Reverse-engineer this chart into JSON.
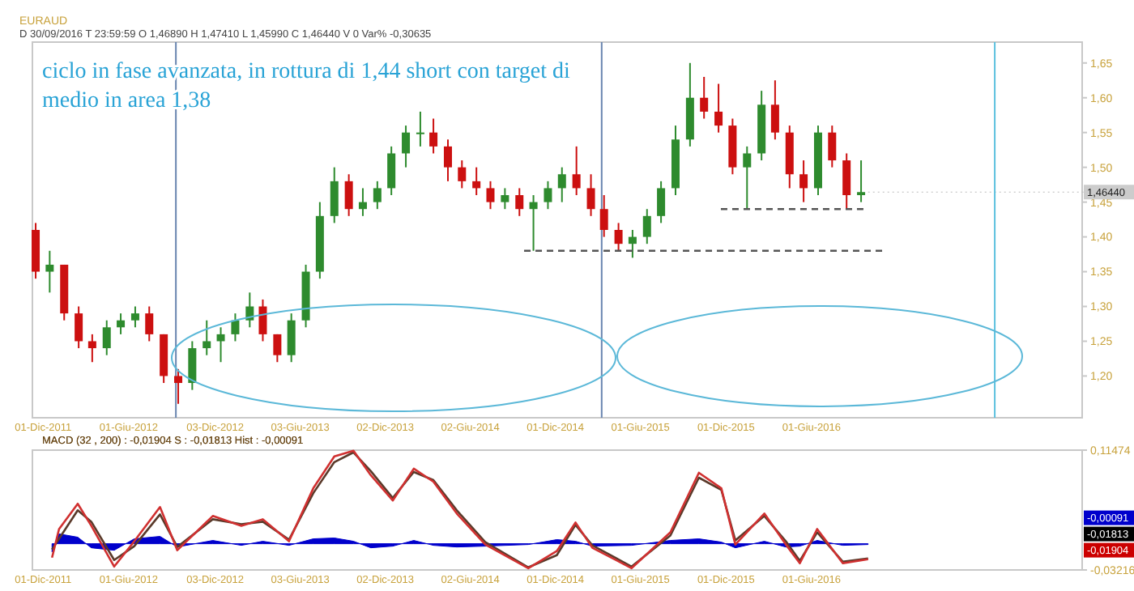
{
  "chart_data": [
    {
      "type": "candlestick",
      "title": "ciclo in fase avanzata, in rottura di 1,44 short con target di medio in area 1,38",
      "annotations": [
        "EURAUD",
        "D 30/09/2016  T 23:59:59  O 1,46890  H 1,47410  L 1,45990  C 1,46440  V 0  Var% -0,30635",
        {
          "text": "1,46440",
          "x": "2016-09-30",
          "y": 1.4644
        }
      ],
      "xlim": [
        "2011-11-08",
        "2018-01-01"
      ],
      "xticks": [
        {
          "value": "2011-12-01",
          "label": "01-Dic-2011"
        },
        {
          "value": "2012-06-01",
          "label": "01-Giu-2012"
        },
        {
          "value": "2012-12-03",
          "label": "03-Dic-2012"
        },
        {
          "value": "2013-06-03",
          "label": "03-Giu-2013"
        },
        {
          "value": "2013-12-02",
          "label": "02-Dic-2013"
        },
        {
          "value": "2014-06-02",
          "label": "02-Giu-2014"
        },
        {
          "value": "2014-12-01",
          "label": "01-Dic-2014"
        },
        {
          "value": "2015-06-01",
          "label": "01-Giu-2015"
        },
        {
          "value": "2015-12-01",
          "label": "01-Dic-2015"
        },
        {
          "value": "2016-06-01",
          "label": "01-Giu-2016"
        }
      ],
      "ylim": [
        1.14,
        1.68
      ],
      "yticks": [
        {
          "value": 1.2,
          "label": "1,20"
        },
        {
          "value": 1.25,
          "label": "1,25"
        },
        {
          "value": 1.3,
          "label": "1,30"
        },
        {
          "value": 1.35,
          "label": "1,35"
        },
        {
          "value": 1.4,
          "label": "1,40"
        },
        {
          "value": 1.45,
          "label": "1,45"
        },
        {
          "value": 1.5,
          "label": "1,50"
        },
        {
          "value": 1.55,
          "label": "1,55"
        },
        {
          "value": 1.6,
          "label": "1,60"
        },
        {
          "value": 1.65,
          "label": "1,65"
        }
      ],
      "x": [
        "2011-11-15",
        "2011-12-15",
        "2012-01-15",
        "2012-02-15",
        "2012-03-15",
        "2012-04-15",
        "2012-05-15",
        "2012-06-15",
        "2012-07-15",
        "2012-08-15",
        "2012-09-15",
        "2012-10-15",
        "2012-11-15",
        "2012-12-15",
        "2013-01-15",
        "2013-02-15",
        "2013-03-15",
        "2013-04-15",
        "2013-05-15",
        "2013-06-15",
        "2013-07-15",
        "2013-08-15",
        "2013-09-15",
        "2013-10-15",
        "2013-11-15",
        "2013-12-15",
        "2014-01-15",
        "2014-02-15",
        "2014-03-15",
        "2014-04-15",
        "2014-05-15",
        "2014-06-15",
        "2014-07-15",
        "2014-08-15",
        "2014-09-15",
        "2014-10-15",
        "2014-11-15",
        "2014-12-15",
        "2015-01-15",
        "2015-02-15",
        "2015-03-15",
        "2015-04-15",
        "2015-05-15",
        "2015-06-15",
        "2015-07-15",
        "2015-08-15",
        "2015-09-15",
        "2015-10-15",
        "2015-11-15",
        "2015-12-15",
        "2016-01-15",
        "2016-02-15",
        "2016-03-15",
        "2016-04-15",
        "2016-05-15",
        "2016-06-15",
        "2016-07-15",
        "2016-08-15",
        "2016-09-15"
      ],
      "ohlc": [
        [
          1.41,
          1.42,
          1.34,
          1.35
        ],
        [
          1.35,
          1.38,
          1.32,
          1.36
        ],
        [
          1.36,
          1.36,
          1.28,
          1.29
        ],
        [
          1.29,
          1.3,
          1.24,
          1.25
        ],
        [
          1.25,
          1.26,
          1.22,
          1.24
        ],
        [
          1.24,
          1.28,
          1.23,
          1.27
        ],
        [
          1.27,
          1.29,
          1.26,
          1.28
        ],
        [
          1.28,
          1.3,
          1.27,
          1.29
        ],
        [
          1.29,
          1.3,
          1.25,
          1.26
        ],
        [
          1.26,
          1.26,
          1.19,
          1.2
        ],
        [
          1.2,
          1.21,
          1.16,
          1.19
        ],
        [
          1.19,
          1.25,
          1.18,
          1.24
        ],
        [
          1.24,
          1.28,
          1.23,
          1.25
        ],
        [
          1.25,
          1.27,
          1.22,
          1.26
        ],
        [
          1.26,
          1.29,
          1.25,
          1.28
        ],
        [
          1.28,
          1.32,
          1.27,
          1.3
        ],
        [
          1.3,
          1.31,
          1.25,
          1.26
        ],
        [
          1.26,
          1.26,
          1.22,
          1.23
        ],
        [
          1.23,
          1.29,
          1.22,
          1.28
        ],
        [
          1.28,
          1.36,
          1.27,
          1.35
        ],
        [
          1.35,
          1.45,
          1.34,
          1.43
        ],
        [
          1.43,
          1.5,
          1.42,
          1.48
        ],
        [
          1.48,
          1.49,
          1.43,
          1.44
        ],
        [
          1.44,
          1.47,
          1.43,
          1.45
        ],
        [
          1.45,
          1.48,
          1.44,
          1.47
        ],
        [
          1.47,
          1.53,
          1.46,
          1.52
        ],
        [
          1.52,
          1.56,
          1.5,
          1.55
        ],
        [
          1.55,
          1.58,
          1.53,
          1.55
        ],
        [
          1.55,
          1.57,
          1.52,
          1.53
        ],
        [
          1.53,
          1.54,
          1.48,
          1.5
        ],
        [
          1.5,
          1.51,
          1.47,
          1.48
        ],
        [
          1.48,
          1.5,
          1.46,
          1.47
        ],
        [
          1.47,
          1.48,
          1.44,
          1.45
        ],
        [
          1.45,
          1.47,
          1.44,
          1.46
        ],
        [
          1.46,
          1.47,
          1.43,
          1.44
        ],
        [
          1.44,
          1.46,
          1.38,
          1.45
        ],
        [
          1.45,
          1.48,
          1.44,
          1.47
        ],
        [
          1.47,
          1.5,
          1.45,
          1.49
        ],
        [
          1.49,
          1.53,
          1.46,
          1.47
        ],
        [
          1.47,
          1.49,
          1.43,
          1.44
        ],
        [
          1.44,
          1.46,
          1.4,
          1.41
        ],
        [
          1.41,
          1.42,
          1.38,
          1.39
        ],
        [
          1.39,
          1.41,
          1.37,
          1.4
        ],
        [
          1.4,
          1.44,
          1.39,
          1.43
        ],
        [
          1.43,
          1.48,
          1.42,
          1.47
        ],
        [
          1.47,
          1.56,
          1.46,
          1.54
        ],
        [
          1.54,
          1.65,
          1.53,
          1.6
        ],
        [
          1.6,
          1.63,
          1.57,
          1.58
        ],
        [
          1.58,
          1.62,
          1.55,
          1.56
        ],
        [
          1.56,
          1.57,
          1.49,
          1.5
        ],
        [
          1.5,
          1.53,
          1.44,
          1.52
        ],
        [
          1.52,
          1.61,
          1.51,
          1.59
        ],
        [
          1.59,
          1.625,
          1.54,
          1.55
        ],
        [
          1.55,
          1.56,
          1.47,
          1.49
        ],
        [
          1.49,
          1.51,
          1.45,
          1.47
        ],
        [
          1.47,
          1.56,
          1.46,
          1.55
        ],
        [
          1.55,
          1.56,
          1.5,
          1.51
        ],
        [
          1.51,
          1.52,
          1.44,
          1.46
        ],
        [
          1.46,
          1.51,
          1.45,
          1.4644
        ]
      ],
      "series": [
        {
          "type": "line",
          "color": "#555555",
          "line_style": "dashed",
          "x": [
            "2014-09-25",
            "2016-11-05"
          ],
          "values": [
            1.38,
            1.38
          ]
        },
        {
          "type": "line",
          "color": "#555555",
          "line_style": "dashed",
          "x": [
            "2015-11-20",
            "2016-09-30"
          ],
          "values": [
            1.44,
            1.44
          ]
        }
      ],
      "ref_lines": [
        {
          "axis": "x",
          "value": "2012-09-10",
          "color": "#6a86b0"
        },
        {
          "axis": "x",
          "value": "2015-03-10",
          "color": "#6a86b0"
        },
        {
          "axis": "x",
          "value": "2017-06-28",
          "color": "#5bc0de"
        }
      ]
    },
    {
      "type": "line",
      "title": "MACD (32 , 200) : -0,01904   S : -0,01813   Hist : -0,00091",
      "annotations": [
        "-0,00091",
        "-0,01813",
        "-0,01904"
      ],
      "xlim": [
        "2011-11-08",
        "2018-01-01"
      ],
      "xticks": [
        {
          "value": "2011-12-01",
          "label": "01-Dic-2011"
        },
        {
          "value": "2012-06-01",
          "label": "01-Giu-2012"
        },
        {
          "value": "2012-12-03",
          "label": "03-Dic-2012"
        },
        {
          "value": "2013-06-03",
          "label": "03-Giu-2013"
        },
        {
          "value": "2013-12-02",
          "label": "02-Dic-2013"
        },
        {
          "value": "2014-06-02",
          "label": "02-Giu-2014"
        },
        {
          "value": "2014-12-01",
          "label": "01-Dic-2014"
        },
        {
          "value": "2015-06-01",
          "label": "01-Giu-2015"
        },
        {
          "value": "2015-12-01",
          "label": "01-Dic-2015"
        },
        {
          "value": "2016-06-01",
          "label": "01-Giu-2016"
        }
      ],
      "ylim": [
        -0.03216,
        0.11474
      ],
      "yticks": [
        {
          "value": -0.03216,
          "label": "-0,03216"
        },
        {
          "value": 0.11474,
          "label": "0,11474"
        }
      ],
      "x": [
        "2011-12-20",
        "2012-01-04",
        "2012-02-13",
        "2012-03-13",
        "2012-05-01",
        "2012-06-13",
        "2012-08-07",
        "2012-09-13",
        "2012-11-28",
        "2013-01-28",
        "2013-03-15",
        "2013-05-10",
        "2013-07-01",
        "2013-08-15",
        "2013-09-25",
        "2013-11-01",
        "2013-12-18",
        "2014-02-01",
        "2014-03-15",
        "2014-05-04",
        "2014-07-04",
        "2014-10-04",
        "2014-12-04",
        "2015-01-13",
        "2015-02-18",
        "2015-05-13",
        "2015-08-04",
        "2015-10-04",
        "2015-11-21",
        "2015-12-21",
        "2016-02-21",
        "2016-04-07",
        "2016-05-07",
        "2016-06-13",
        "2016-08-07",
        "2016-09-30"
      ],
      "series": [
        {
          "type": "area",
          "color": "#0000cc",
          "values": [
            -0.01,
            0.012,
            0.008,
            -0.005,
            -0.008,
            0.006,
            0.009,
            -0.004,
            0.004,
            -0.002,
            0.003,
            -0.002,
            0.006,
            0.007,
            0.003,
            -0.005,
            -0.003,
            0.004,
            -0.002,
            -0.004,
            -0.003,
            -0.001,
            0.005,
            0.003,
            -0.003,
            -0.002,
            0.004,
            0.006,
            0.002,
            -0.005,
            0.003,
            -0.004,
            -0.003,
            0.004,
            -0.002,
            -0.001
          ]
        },
        {
          "type": "line",
          "color": "#5a3a2a",
          "values": [
            -0.007,
            0.006,
            0.041,
            0.027,
            -0.02,
            -0.003,
            0.036,
            -0.004,
            0.03,
            0.024,
            0.027,
            0.005,
            0.062,
            0.1,
            0.112,
            0.089,
            0.056,
            0.088,
            0.078,
            0.041,
            0.002,
            -0.029,
            -0.014,
            0.023,
            -0.002,
            -0.028,
            0.01,
            0.081,
            0.066,
            0.004,
            0.034,
            0.003,
            -0.021,
            0.014,
            -0.022,
            -0.018
          ]
        },
        {
          "type": "line",
          "color": "#d03030",
          "values": [
            -0.017,
            0.018,
            0.049,
            0.022,
            -0.028,
            0.003,
            0.045,
            -0.008,
            0.034,
            0.022,
            0.03,
            0.003,
            0.068,
            0.107,
            0.114,
            0.084,
            0.053,
            0.092,
            0.076,
            0.037,
            -0.001,
            -0.03,
            -0.009,
            0.026,
            -0.005,
            -0.03,
            0.014,
            0.087,
            0.068,
            -0.001,
            0.037,
            -0.001,
            -0.024,
            0.018,
            -0.024,
            -0.019
          ]
        }
      ]
    }
  ]
}
